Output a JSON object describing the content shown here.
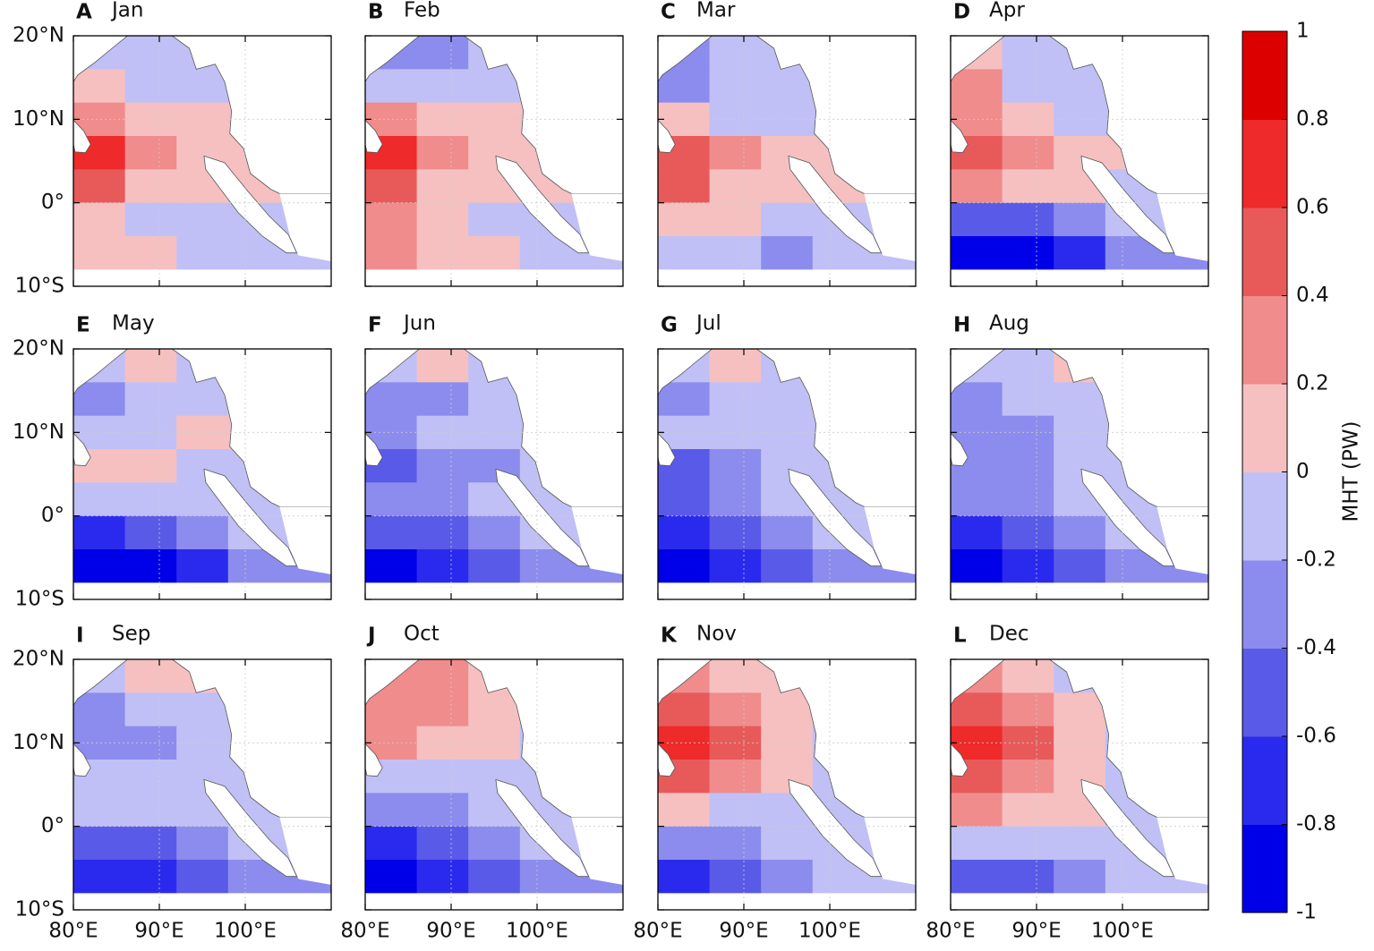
{
  "chart_data": {
    "type": "heatmap",
    "xlim": [
      80,
      110
    ],
    "ylim": [
      -10,
      20
    ],
    "xticks": [
      {
        "value": 80,
        "label": "80°E"
      },
      {
        "value": 90,
        "label": "90°E"
      },
      {
        "value": 100,
        "label": "100°E"
      }
    ],
    "yticks": [
      {
        "value": 20,
        "label": "20°N"
      },
      {
        "value": 10,
        "label": "10°N"
      },
      {
        "value": 0,
        "label": "0°"
      },
      {
        "value": -10,
        "label": "10°S"
      }
    ],
    "grid": true,
    "colorbar": {
      "label": "MHT  (PW)",
      "ticks": [
        -1,
        -0.8,
        -0.6,
        -0.4,
        -0.2,
        0,
        0.2,
        0.4,
        0.6,
        0.8,
        1
      ],
      "colors": [
        "#0000e8",
        "#2a2aee",
        "#5a5ae8",
        "#8c8cee",
        "#c0c0f6",
        "#f6c0c0",
        "#f08c8c",
        "#e85a5a",
        "#ee2a2a",
        "#dd0000"
      ]
    },
    "panels": [
      {
        "label": "A",
        "title": "Jan",
        "values": [
          [
            -0.1,
            -0.1,
            -0.1,
            -0.1
          ],
          [
            0.1,
            -0.1,
            -0.1,
            -0.1
          ],
          [
            0.4,
            0.2,
            0.1,
            0.1
          ],
          [
            0.7,
            0.3,
            0.1,
            0.1
          ],
          [
            0.5,
            0.2,
            0.1,
            0.1
          ],
          [
            0.1,
            -0.1,
            -0.1,
            -0.1
          ],
          [
            0.1,
            0.1,
            -0.1,
            -0.1
          ]
        ]
      },
      {
        "label": "B",
        "title": "Feb",
        "values": [
          [
            -0.2,
            -0.3,
            -0.1,
            -0.1
          ],
          [
            -0.1,
            -0.1,
            -0.1,
            -0.1
          ],
          [
            0.3,
            0.1,
            0.1,
            0.1
          ],
          [
            0.7,
            0.4,
            0.1,
            0.1
          ],
          [
            0.5,
            0.2,
            0.1,
            0.1
          ],
          [
            0.3,
            0.1,
            -0.1,
            -0.1
          ],
          [
            0.3,
            0.1,
            0.1,
            -0.1
          ]
        ]
      },
      {
        "label": "C",
        "title": "Mar",
        "values": [
          [
            -0.3,
            -0.1,
            -0.1,
            -0.1
          ],
          [
            -0.2,
            -0.1,
            -0.1,
            -0.1
          ],
          [
            0.1,
            -0.1,
            -0.1,
            -0.1
          ],
          [
            0.5,
            0.3,
            0.1,
            0.1
          ],
          [
            0.5,
            0.2,
            0.1,
            0.1
          ],
          [
            0.1,
            0.1,
            -0.1,
            -0.1
          ],
          [
            -0.1,
            -0.1,
            -0.3,
            -0.1
          ]
        ]
      },
      {
        "label": "D",
        "title": "Apr",
        "values": [
          [
            0.1,
            -0.1,
            -0.1,
            -0.1
          ],
          [
            0.3,
            -0.1,
            -0.1,
            -0.1
          ],
          [
            0.3,
            0.1,
            -0.1,
            -0.1
          ],
          [
            0.5,
            0.3,
            0.1,
            0.1
          ],
          [
            0.3,
            0.1,
            0.1,
            -0.1
          ],
          [
            -0.5,
            -0.5,
            -0.3,
            -0.1
          ],
          [
            -0.9,
            -0.9,
            -0.7,
            -0.3
          ]
        ]
      },
      {
        "label": "E",
        "title": "May",
        "values": [
          [
            -0.1,
            0.1,
            -0.1,
            -0.1
          ],
          [
            -0.3,
            -0.1,
            -0.1,
            0.1
          ],
          [
            -0.1,
            -0.1,
            0.1,
            0.1
          ],
          [
            0.1,
            0.1,
            -0.1,
            -0.1
          ],
          [
            -0.1,
            -0.1,
            -0.1,
            -0.1
          ],
          [
            -0.7,
            -0.5,
            -0.3,
            -0.1
          ],
          [
            -0.9,
            -0.9,
            -0.7,
            -0.3
          ]
        ]
      },
      {
        "label": "F",
        "title": "Jun",
        "values": [
          [
            -0.1,
            0.1,
            -0.1,
            -0.1
          ],
          [
            -0.3,
            -0.3,
            -0.1,
            -0.1
          ],
          [
            -0.3,
            -0.1,
            -0.1,
            -0.1
          ],
          [
            -0.5,
            -0.3,
            -0.3,
            -0.1
          ],
          [
            -0.3,
            -0.3,
            -0.1,
            -0.1
          ],
          [
            -0.5,
            -0.5,
            -0.3,
            -0.1
          ],
          [
            -0.9,
            -0.7,
            -0.5,
            -0.3
          ]
        ]
      },
      {
        "label": "G",
        "title": "Jul",
        "values": [
          [
            -0.1,
            0.1,
            -0.1,
            -0.1
          ],
          [
            -0.3,
            -0.1,
            -0.1,
            0.1
          ],
          [
            -0.1,
            -0.1,
            -0.1,
            -0.1
          ],
          [
            -0.5,
            -0.3,
            -0.1,
            -0.1
          ],
          [
            -0.5,
            -0.3,
            -0.1,
            -0.1
          ],
          [
            -0.7,
            -0.5,
            -0.3,
            -0.1
          ],
          [
            -0.9,
            -0.7,
            -0.5,
            -0.3
          ]
        ]
      },
      {
        "label": "H",
        "title": "Aug",
        "values": [
          [
            -0.1,
            -0.1,
            0.1,
            -0.1
          ],
          [
            -0.3,
            -0.1,
            -0.1,
            -0.1
          ],
          [
            -0.3,
            -0.3,
            -0.1,
            -0.1
          ],
          [
            -0.3,
            -0.3,
            -0.1,
            -0.1
          ],
          [
            -0.3,
            -0.3,
            -0.1,
            -0.1
          ],
          [
            -0.7,
            -0.5,
            -0.3,
            -0.1
          ],
          [
            -0.9,
            -0.7,
            -0.5,
            -0.3
          ]
        ]
      },
      {
        "label": "I",
        "title": "Sep",
        "values": [
          [
            -0.1,
            0.1,
            0.1,
            -0.1
          ],
          [
            -0.3,
            -0.1,
            -0.1,
            -0.1
          ],
          [
            -0.3,
            -0.3,
            -0.1,
            -0.1
          ],
          [
            -0.1,
            -0.1,
            -0.1,
            -0.1
          ],
          [
            -0.1,
            -0.1,
            -0.1,
            -0.1
          ],
          [
            -0.5,
            -0.5,
            -0.3,
            -0.1
          ],
          [
            -0.7,
            -0.7,
            -0.5,
            -0.3
          ]
        ]
      },
      {
        "label": "J",
        "title": "Oct",
        "values": [
          [
            0.3,
            0.3,
            0.1,
            -0.1
          ],
          [
            0.3,
            0.3,
            0.1,
            -0.1
          ],
          [
            0.3,
            0.1,
            0.1,
            -0.1
          ],
          [
            -0.1,
            -0.1,
            -0.1,
            -0.1
          ],
          [
            -0.3,
            -0.3,
            -0.1,
            -0.1
          ],
          [
            -0.7,
            -0.5,
            -0.3,
            -0.1
          ],
          [
            -0.9,
            -0.7,
            -0.5,
            -0.3
          ]
        ]
      },
      {
        "label": "K",
        "title": "Nov",
        "values": [
          [
            0.3,
            0.1,
            0.1,
            -0.1
          ],
          [
            0.5,
            0.3,
            0.1,
            -0.1
          ],
          [
            0.7,
            0.5,
            0.1,
            -0.1
          ],
          [
            0.5,
            0.3,
            0.1,
            -0.1
          ],
          [
            0.1,
            -0.1,
            -0.1,
            -0.1
          ],
          [
            -0.3,
            -0.3,
            -0.1,
            -0.1
          ],
          [
            -0.7,
            -0.5,
            -0.3,
            -0.1
          ]
        ]
      },
      {
        "label": "L",
        "title": "Dec",
        "values": [
          [
            0.3,
            0.1,
            -0.1,
            -0.1
          ],
          [
            0.5,
            0.3,
            0.1,
            -0.1
          ],
          [
            0.7,
            0.5,
            0.1,
            -0.1
          ],
          [
            0.5,
            0.3,
            0.1,
            -0.1
          ],
          [
            0.3,
            0.1,
            0.1,
            -0.1
          ],
          [
            -0.1,
            -0.1,
            -0.1,
            -0.1
          ],
          [
            -0.5,
            -0.5,
            -0.3,
            -0.1
          ]
        ]
      }
    ]
  }
}
